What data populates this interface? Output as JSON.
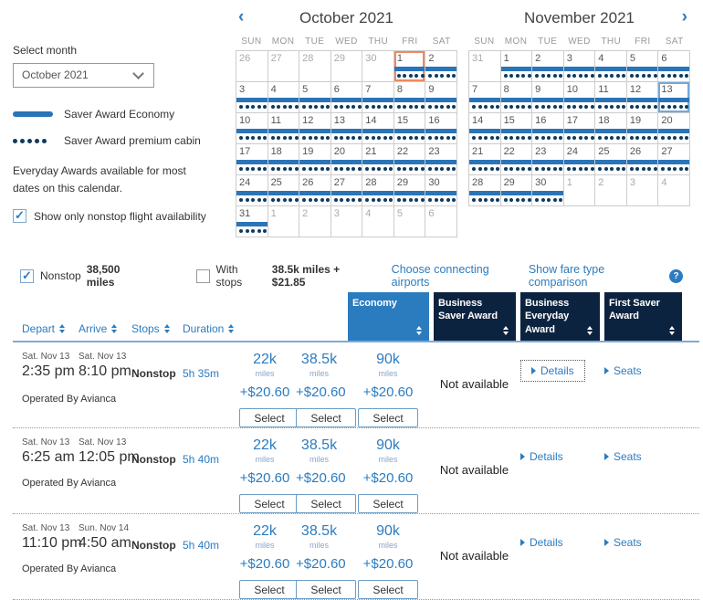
{
  "colors": {
    "brand_blue": "#2b7cc0",
    "header_navy": "#0c2340",
    "economy_header_blue": "#2b7bbf",
    "saver_bar_blue": "#2a74b8",
    "premium_dot_navy": "#0f3a5f",
    "today_border_orange": "#ed8a5f",
    "selected_border_blue": "#74a9d8"
  },
  "sidebar": {
    "select_month_label": "Select month",
    "month_value": "October 2021",
    "legend_economy": "Saver Award Economy",
    "legend_premium": "Saver Award premium cabin",
    "note": "Everyday Awards available for most dates on this calendar.",
    "nonstop_toggle_label": "Show only nonstop flight availability",
    "nonstop_toggle_checked": true
  },
  "calendars": [
    {
      "title": "October 2021",
      "nav_prev": "‹",
      "weekdays": [
        "SUN",
        "MON",
        "TUE",
        "WED",
        "THU",
        "FRI",
        "SAT"
      ],
      "weeks": [
        [
          {
            "d": 26,
            "muted": true
          },
          {
            "d": 27,
            "muted": true
          },
          {
            "d": 28,
            "muted": true
          },
          {
            "d": 29,
            "muted": true
          },
          {
            "d": 30,
            "muted": true
          },
          {
            "d": 1,
            "saver": true,
            "premium": true,
            "today": true
          },
          {
            "d": 2,
            "saver": true,
            "premium": true
          }
        ],
        [
          {
            "d": 3,
            "saver": true,
            "premium": true
          },
          {
            "d": 4,
            "saver": true,
            "premium": true
          },
          {
            "d": 5,
            "saver": true,
            "premium": true
          },
          {
            "d": 6,
            "saver": true,
            "premium": true
          },
          {
            "d": 7,
            "saver": true,
            "premium": true
          },
          {
            "d": 8,
            "saver": true,
            "premium": true
          },
          {
            "d": 9,
            "saver": true,
            "premium": true
          }
        ],
        [
          {
            "d": 10,
            "saver": true,
            "premium": true
          },
          {
            "d": 11,
            "saver": true,
            "premium": true
          },
          {
            "d": 12,
            "saver": true,
            "premium": true
          },
          {
            "d": 13,
            "saver": true,
            "premium": true
          },
          {
            "d": 14,
            "saver": true,
            "premium": true
          },
          {
            "d": 15,
            "saver": true,
            "premium": true
          },
          {
            "d": 16,
            "saver": true,
            "premium": true
          }
        ],
        [
          {
            "d": 17,
            "saver": true,
            "premium": true
          },
          {
            "d": 18,
            "saver": true,
            "premium": true
          },
          {
            "d": 19,
            "saver": true,
            "premium": true
          },
          {
            "d": 20,
            "saver": true,
            "premium": true
          },
          {
            "d": 21,
            "saver": true,
            "premium": true
          },
          {
            "d": 22,
            "saver": true,
            "premium": true
          },
          {
            "d": 23,
            "saver": true,
            "premium": true
          }
        ],
        [
          {
            "d": 24,
            "saver": true,
            "premium": true
          },
          {
            "d": 25,
            "saver": true,
            "premium": true
          },
          {
            "d": 26,
            "saver": true,
            "premium": true
          },
          {
            "d": 27,
            "saver": true,
            "premium": true
          },
          {
            "d": 28,
            "saver": true,
            "premium": true
          },
          {
            "d": 29,
            "saver": true,
            "premium": true
          },
          {
            "d": 30,
            "saver": true,
            "premium": true
          }
        ],
        [
          {
            "d": 31,
            "saver": true,
            "premium": true
          },
          {
            "d": 1,
            "muted": true
          },
          {
            "d": 2,
            "muted": true
          },
          {
            "d": 3,
            "muted": true
          },
          {
            "d": 4,
            "muted": true
          },
          {
            "d": 5,
            "muted": true
          },
          {
            "d": 6,
            "muted": true
          }
        ]
      ]
    },
    {
      "title": "November 2021",
      "nav_next": "›",
      "weekdays": [
        "SUN",
        "MON",
        "TUE",
        "WED",
        "THU",
        "FRI",
        "SAT"
      ],
      "weeks": [
        [
          {
            "d": 31,
            "muted": true
          },
          {
            "d": 1,
            "saver": true,
            "premium": true
          },
          {
            "d": 2,
            "saver": true,
            "premium": true
          },
          {
            "d": 3,
            "saver": true,
            "premium": true
          },
          {
            "d": 4,
            "saver": true,
            "premium": true
          },
          {
            "d": 5,
            "saver": true,
            "premium": true
          },
          {
            "d": 6,
            "saver": true,
            "premium": true
          }
        ],
        [
          {
            "d": 7,
            "saver": true,
            "premium": true
          },
          {
            "d": 8,
            "saver": true,
            "premium": true
          },
          {
            "d": 9,
            "saver": true,
            "premium": true
          },
          {
            "d": 10,
            "saver": true,
            "premium": true
          },
          {
            "d": 11,
            "saver": true,
            "premium": true
          },
          {
            "d": 12,
            "saver": true,
            "premium": true
          },
          {
            "d": 13,
            "saver": true,
            "premium": true,
            "selected": true
          }
        ],
        [
          {
            "d": 14,
            "saver": true,
            "premium": true
          },
          {
            "d": 15,
            "saver": true,
            "premium": true
          },
          {
            "d": 16,
            "saver": true,
            "premium": true
          },
          {
            "d": 17,
            "saver": true,
            "premium": true
          },
          {
            "d": 18,
            "saver": true,
            "premium": true
          },
          {
            "d": 19,
            "saver": true,
            "premium": true
          },
          {
            "d": 20,
            "saver": true,
            "premium": true
          }
        ],
        [
          {
            "d": 21,
            "saver": true,
            "premium": true
          },
          {
            "d": 22,
            "saver": true,
            "premium": true
          },
          {
            "d": 23,
            "saver": true,
            "premium": true
          },
          {
            "d": 24,
            "saver": true,
            "premium": true
          },
          {
            "d": 25,
            "saver": true,
            "premium": true
          },
          {
            "d": 26,
            "saver": true,
            "premium": true
          },
          {
            "d": 27,
            "saver": true,
            "premium": true
          }
        ],
        [
          {
            "d": 28,
            "saver": true,
            "premium": true
          },
          {
            "d": 29,
            "saver": true,
            "premium": true
          },
          {
            "d": 30,
            "saver": true,
            "premium": true
          },
          {
            "d": 1,
            "muted": true
          },
          {
            "d": 2,
            "muted": true
          },
          {
            "d": 3,
            "muted": true
          },
          {
            "d": 4,
            "muted": true
          }
        ]
      ]
    }
  ],
  "filter_bar": {
    "nonstop": {
      "checked": true,
      "label": "Nonstop",
      "miles": "38,500 miles"
    },
    "with_stops": {
      "checked": false,
      "label": "With stops",
      "miles": "38.5k miles + $21.85"
    },
    "connecting_link": "Choose connecting airports",
    "compare_link": "Show fare type comparison",
    "help_icon": "?"
  },
  "results": {
    "columns": [
      "Depart",
      "Arrive",
      "Stops",
      "Duration"
    ],
    "fare_columns": [
      {
        "label": "Economy",
        "highlight": true
      },
      {
        "label": "Business Saver Award"
      },
      {
        "label": "Business Everyday Award"
      },
      {
        "label": "First Saver Award"
      }
    ],
    "rows": [
      {
        "depart_date": "Sat. Nov 13",
        "depart_time": "2:35 pm",
        "arrive_date": "Sat. Nov 13",
        "arrive_time": "8:10 pm",
        "stops": "Nonstop",
        "duration": "5h 35m",
        "details_label": "Details",
        "seats_label": "Seats",
        "details_focused": true,
        "operated_by": "Operated By Avianca",
        "fares": [
          {
            "miles": "22k",
            "unit": "miles",
            "fee": "+$20.60",
            "select": "Select"
          },
          {
            "miles": "38.5k",
            "unit": "miles",
            "fee": "+$20.60",
            "select": "Select"
          },
          {
            "miles": "90k",
            "unit": "miles",
            "fee": "+$20.60",
            "select": "Select"
          },
          {
            "unavailable": "Not available"
          }
        ]
      },
      {
        "depart_date": "Sat. Nov 13",
        "depart_time": "6:25 am",
        "arrive_date": "Sat. Nov 13",
        "arrive_time": "12:05 pm",
        "stops": "Nonstop",
        "duration": "5h 40m",
        "details_label": "Details",
        "seats_label": "Seats",
        "details_focused": false,
        "operated_by": "Operated By Avianca",
        "fares": [
          {
            "miles": "22k",
            "unit": "miles",
            "fee": "+$20.60",
            "select": "Select"
          },
          {
            "miles": "38.5k",
            "unit": "miles",
            "fee": "+$20.60",
            "select": "Select"
          },
          {
            "miles": "90k",
            "unit": "miles",
            "fee": "+$20.60",
            "select": "Select"
          },
          {
            "unavailable": "Not available"
          }
        ]
      },
      {
        "depart_date": "Sat. Nov 13",
        "depart_time": "11:10 pm",
        "arrive_date": "Sun. Nov 14",
        "arrive_time": "4:50 am",
        "stops": "Nonstop",
        "duration": "5h 40m",
        "details_label": "Details",
        "seats_label": "Seats",
        "details_focused": false,
        "operated_by": "Operated By Avianca",
        "fares": [
          {
            "miles": "22k",
            "unit": "miles",
            "fee": "+$20.60",
            "select": "Select"
          },
          {
            "miles": "38.5k",
            "unit": "miles",
            "fee": "+$20.60",
            "select": "Select"
          },
          {
            "miles": "90k",
            "unit": "miles",
            "fee": "+$20.60",
            "select": "Select"
          },
          {
            "unavailable": "Not available"
          }
        ]
      }
    ]
  }
}
